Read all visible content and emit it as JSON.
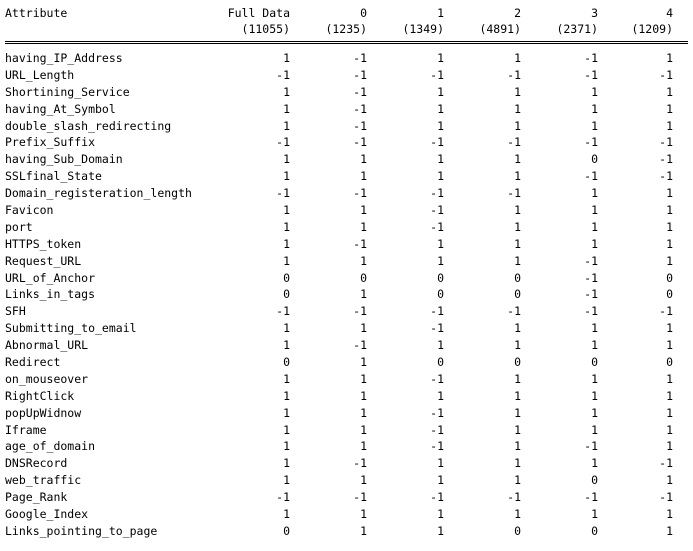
{
  "header": {
    "attribute_label": "Attribute",
    "columns": [
      {
        "label": "Full Data",
        "count": "(11055)"
      },
      {
        "label": "0",
        "count": "(1235)"
      },
      {
        "label": "1",
        "count": "(1349)"
      },
      {
        "label": "2",
        "count": "(4891)"
      },
      {
        "label": "3",
        "count": "(2371)"
      },
      {
        "label": "4",
        "count": "(1209)"
      }
    ]
  },
  "rows": [
    {
      "name": "having_IP_Address",
      "values": [
        "1",
        "-1",
        "1",
        "1",
        "-1",
        "1"
      ]
    },
    {
      "name": "URL_Length",
      "values": [
        "-1",
        "-1",
        "-1",
        "-1",
        "-1",
        "-1"
      ]
    },
    {
      "name": "Shortining_Service",
      "values": [
        "1",
        "-1",
        "1",
        "1",
        "1",
        "1"
      ]
    },
    {
      "name": "having_At_Symbol",
      "values": [
        "1",
        "-1",
        "1",
        "1",
        "1",
        "1"
      ]
    },
    {
      "name": "double_slash_redirecting",
      "values": [
        "1",
        "-1",
        "1",
        "1",
        "1",
        "1"
      ]
    },
    {
      "name": "Prefix_Suffix",
      "values": [
        "-1",
        "-1",
        "-1",
        "-1",
        "-1",
        "-1"
      ]
    },
    {
      "name": "having_Sub_Domain",
      "values": [
        "1",
        "1",
        "1",
        "1",
        "0",
        "-1"
      ]
    },
    {
      "name": "SSLfinal_State",
      "values": [
        "1",
        "1",
        "1",
        "1",
        "-1",
        "-1"
      ]
    },
    {
      "name": "Domain_registeration_length",
      "values": [
        "-1",
        "-1",
        "-1",
        "-1",
        "1",
        "1"
      ]
    },
    {
      "name": "Favicon",
      "values": [
        "1",
        "1",
        "-1",
        "1",
        "1",
        "1"
      ]
    },
    {
      "name": "port",
      "values": [
        "1",
        "1",
        "-1",
        "1",
        "1",
        "1"
      ]
    },
    {
      "name": "HTTPS_token",
      "values": [
        "1",
        "-1",
        "1",
        "1",
        "1",
        "1"
      ]
    },
    {
      "name": "Request_URL",
      "values": [
        "1",
        "1",
        "1",
        "1",
        "-1",
        "1"
      ]
    },
    {
      "name": "URL_of_Anchor",
      "values": [
        "0",
        "0",
        "0",
        "0",
        "-1",
        "0"
      ]
    },
    {
      "name": "Links_in_tags",
      "values": [
        "0",
        "1",
        "0",
        "0",
        "-1",
        "0"
      ]
    },
    {
      "name": "SFH",
      "values": [
        "-1",
        "-1",
        "-1",
        "-1",
        "-1",
        "-1"
      ]
    },
    {
      "name": "Submitting_to_email",
      "values": [
        "1",
        "1",
        "-1",
        "1",
        "1",
        "1"
      ]
    },
    {
      "name": "Abnormal_URL",
      "values": [
        "1",
        "-1",
        "1",
        "1",
        "1",
        "1"
      ]
    },
    {
      "name": "Redirect",
      "values": [
        "0",
        "1",
        "0",
        "0",
        "0",
        "0"
      ]
    },
    {
      "name": "on_mouseover",
      "values": [
        "1",
        "1",
        "-1",
        "1",
        "1",
        "1"
      ]
    },
    {
      "name": "RightClick",
      "values": [
        "1",
        "1",
        "1",
        "1",
        "1",
        "1"
      ]
    },
    {
      "name": "popUpWidnow",
      "values": [
        "1",
        "1",
        "-1",
        "1",
        "1",
        "1"
      ]
    },
    {
      "name": "Iframe",
      "values": [
        "1",
        "1",
        "-1",
        "1",
        "1",
        "1"
      ]
    },
    {
      "name": "age_of_domain",
      "values": [
        "1",
        "1",
        "-1",
        "1",
        "-1",
        "1"
      ]
    },
    {
      "name": "DNSRecord",
      "values": [
        "1",
        "-1",
        "1",
        "1",
        "1",
        "-1"
      ]
    },
    {
      "name": "web_traffic",
      "values": [
        "1",
        "1",
        "1",
        "1",
        "0",
        "1"
      ]
    },
    {
      "name": "Page_Rank",
      "values": [
        "-1",
        "-1",
        "-1",
        "-1",
        "-1",
        "-1"
      ]
    },
    {
      "name": "Google_Index",
      "values": [
        "1",
        "1",
        "1",
        "1",
        "1",
        "1"
      ]
    },
    {
      "name": "Links_pointing_to_page",
      "values": [
        "0",
        "1",
        "1",
        "0",
        "0",
        "1"
      ]
    }
  ]
}
